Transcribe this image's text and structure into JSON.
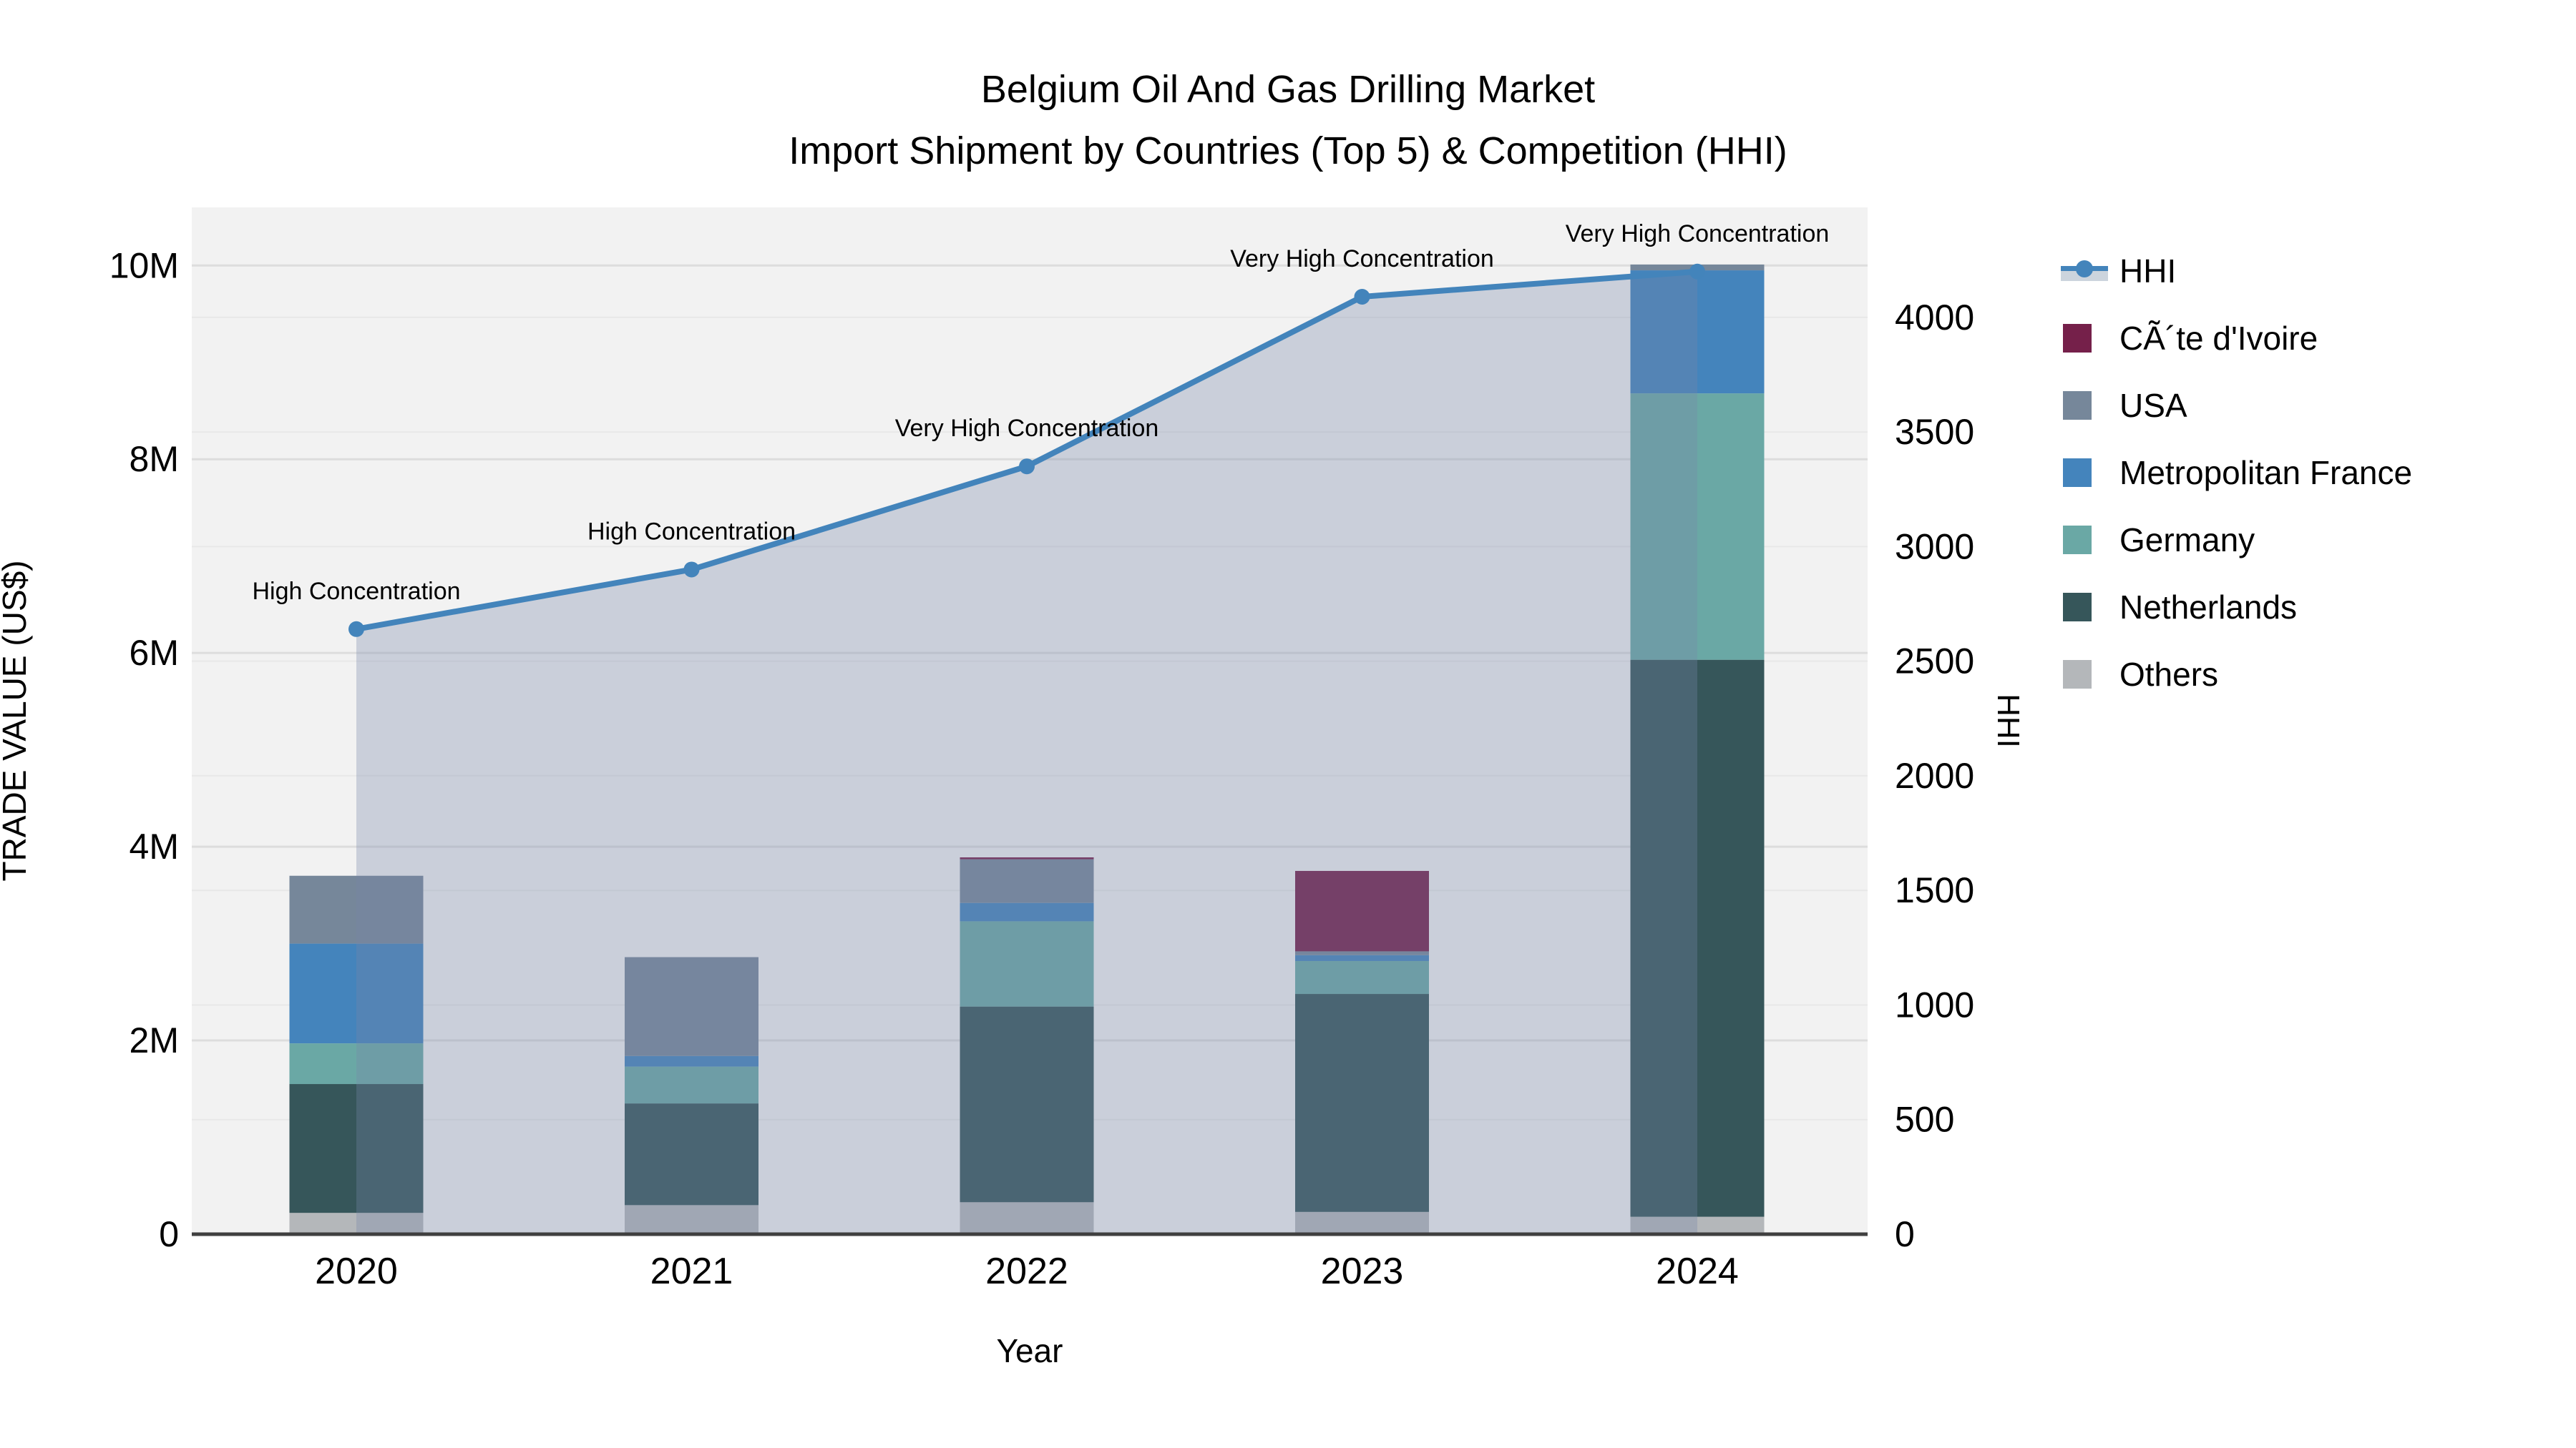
{
  "title": {
    "line1": "Belgium Oil And Gas Drilling Market",
    "line2": "Import Shipment by Countries (Top 5) & Competition (HHI)"
  },
  "colors": {
    "plot_bg": "#f2f2f2",
    "grid_major": "#dddddd",
    "grid_minor": "#e8e8e8",
    "axis_line": "#3f3f3f",
    "text": "#000000",
    "hhi_line": "#4384bb",
    "hhi_fill": "#7787a9",
    "hhi_fill_opacity": "0.32",
    "legend_band": "#ccd4dd"
  },
  "chart_data": {
    "type": "bar",
    "subtype": "stacked-bars-with-line-overlay",
    "title": "Belgium Oil And Gas Drilling Market — Import Shipment by Countries (Top 5) & Competition (HHI)",
    "categories": [
      "2020",
      "2021",
      "2022",
      "2023",
      "2024"
    ],
    "xlabel": "Year",
    "grid": true,
    "legend_position": "right",
    "series": [
      {
        "name": "CÃ´te d'Ivoire",
        "color": "#75204a",
        "values": [
          0,
          0,
          20000,
          830000,
          0
        ]
      },
      {
        "name": "USA",
        "color": "#76879a",
        "values": [
          700000,
          1020000,
          450000,
          40000,
          60000
        ]
      },
      {
        "name": "Metropolitan France",
        "color": "#4484bc",
        "values": [
          1030000,
          110000,
          190000,
          60000,
          1270000
        ]
      },
      {
        "name": "Germany",
        "color": "#6aa8a5",
        "values": [
          420000,
          380000,
          880000,
          340000,
          2750000
        ]
      },
      {
        "name": "Netherlands",
        "color": "#36565a",
        "values": [
          1330000,
          1050000,
          2020000,
          2250000,
          5750000
        ]
      },
      {
        "name": "Others",
        "color": "#b4b7ba",
        "values": [
          220000,
          300000,
          330000,
          230000,
          180000
        ]
      }
    ],
    "line_series": {
      "name": "HHI",
      "color": "#4384bb",
      "values": [
        2640,
        2900,
        3350,
        4090,
        4200
      ],
      "annotations": [
        "High Concentration",
        "High Concentration",
        "Very High Concentration",
        "Very High Concentration",
        "Very High Concentration"
      ]
    },
    "left_axis": {
      "label": "TRADE VALUE (US$)",
      "ticks": [
        {
          "v": 0,
          "label": "0"
        },
        {
          "v": 2000000,
          "label": "2M"
        },
        {
          "v": 4000000,
          "label": "4M"
        },
        {
          "v": 6000000,
          "label": "6M"
        },
        {
          "v": 8000000,
          "label": "8M"
        },
        {
          "v": 10000000,
          "label": "10M"
        }
      ],
      "max": 10600000
    },
    "right_axis": {
      "label": "HHI",
      "ticks": [
        0,
        500,
        1000,
        1500,
        2000,
        2500,
        3000,
        3500,
        4000
      ],
      "max": 4480
    }
  },
  "legend": {
    "line_item_label": "HHI"
  }
}
